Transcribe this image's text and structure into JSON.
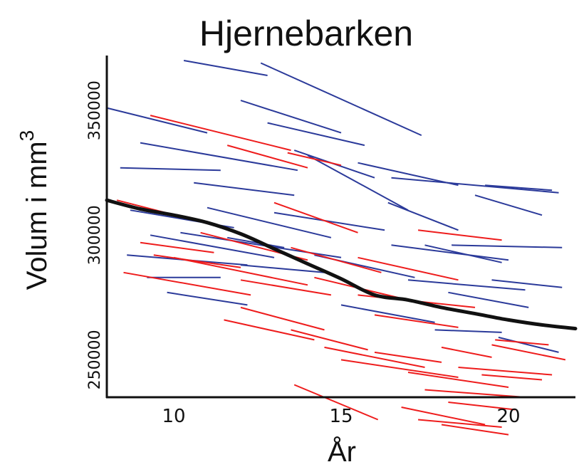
{
  "chart_data": {
    "type": "line",
    "title": "Hjernebarken",
    "xlabel": "År",
    "ylabel_main": "Volum i mm",
    "ylabel_superscript": "3",
    "xlim": [
      8,
      22
    ],
    "ylim": [
      235000,
      372000
    ],
    "x_ticks": [
      10,
      15,
      20
    ],
    "x_tick_labels": [
      "10",
      "15",
      "20"
    ],
    "y_ticks": [
      250000,
      300000,
      350000
    ],
    "y_tick_labels": [
      "250000",
      "300000",
      "350000"
    ],
    "grid": false,
    "colors": {
      "blue": "#2b3a9a",
      "red": "#ee1c1c",
      "mean": "#111111"
    },
    "mean_curve": {
      "x": [
        8,
        9,
        10,
        11,
        12,
        13,
        14,
        15,
        16,
        17,
        18,
        19,
        20,
        21,
        22
      ],
      "y": [
        314000,
        310500,
        308000,
        305000,
        300500,
        294500,
        288500,
        282500,
        276000,
        274000,
        271000,
        268500,
        266000,
        264000,
        262500
      ]
    },
    "series": [
      {
        "color": "blue",
        "segments": [
          [
            10.3,
            370000,
            12.8,
            364000
          ],
          [
            12.6,
            369000,
            17.4,
            340000
          ],
          [
            8.0,
            351000,
            11.0,
            341000
          ],
          [
            12.0,
            354000,
            15.0,
            341000
          ],
          [
            9.0,
            337000,
            13.7,
            326000
          ],
          [
            12.8,
            345000,
            15.7,
            336000
          ],
          [
            8.4,
            327000,
            11.4,
            326000
          ],
          [
            10.6,
            321000,
            13.6,
            316000
          ],
          [
            13.6,
            334000,
            16.0,
            323000
          ],
          [
            14.0,
            332000,
            17.0,
            310000
          ],
          [
            15.5,
            329000,
            18.5,
            320000
          ],
          [
            16.5,
            323000,
            21.5,
            317000
          ],
          [
            16.4,
            313000,
            18.5,
            302000
          ],
          [
            19.3,
            320000,
            21.3,
            318000
          ],
          [
            19.0,
            316000,
            21.0,
            308000
          ],
          [
            8.7,
            310000,
            11.8,
            303000
          ],
          [
            11.0,
            311000,
            14.7,
            299000
          ],
          [
            13.0,
            309000,
            16.3,
            302000
          ],
          [
            9.3,
            300000,
            13.0,
            291000
          ],
          [
            8.6,
            292000,
            12.2,
            288000
          ],
          [
            10.2,
            301000,
            15.0,
            291000
          ],
          [
            11.6,
            299000,
            13.3,
            295000
          ],
          [
            14.2,
            292000,
            17.2,
            283000
          ],
          [
            16.5,
            296000,
            20.0,
            290000
          ],
          [
            17.5,
            296000,
            19.8,
            289000
          ],
          [
            18.3,
            296000,
            21.6,
            295000
          ],
          [
            17.0,
            282000,
            20.5,
            278000
          ],
          [
            18.2,
            277000,
            20.6,
            271000
          ],
          [
            19.5,
            282000,
            21.6,
            279000
          ],
          [
            9.2,
            283000,
            11.4,
            283000
          ],
          [
            9.8,
            277000,
            12.2,
            272000
          ],
          [
            12.0,
            288000,
            14.5,
            285000
          ],
          [
            15.0,
            272000,
            17.8,
            265000
          ],
          [
            19.7,
            259000,
            21.5,
            253000
          ],
          [
            17.8,
            262000,
            19.8,
            261000
          ]
        ]
      },
      {
        "color": "red",
        "segments": [
          [
            9.3,
            348000,
            13.5,
            334000
          ],
          [
            11.6,
            336000,
            14.0,
            327000
          ],
          [
            13.4,
            333000,
            15.0,
            328000
          ],
          [
            8.3,
            314000,
            11.5,
            303000
          ],
          [
            13.0,
            313000,
            15.5,
            301000
          ],
          [
            10.8,
            301000,
            14.0,
            290000
          ],
          [
            9.0,
            297000,
            11.2,
            293000
          ],
          [
            9.4,
            292000,
            12.0,
            287000
          ],
          [
            8.5,
            285000,
            12.3,
            276000
          ],
          [
            10.0,
            291000,
            14.0,
            280000
          ],
          [
            12.0,
            282000,
            14.7,
            276000
          ],
          [
            13.5,
            295000,
            16.2,
            285000
          ],
          [
            14.2,
            283000,
            17.0,
            274000
          ],
          [
            15.5,
            291000,
            18.5,
            282000
          ],
          [
            17.3,
            302000,
            19.8,
            298000
          ],
          [
            15.5,
            276000,
            19.0,
            271000
          ],
          [
            16.0,
            268000,
            18.5,
            263000
          ],
          [
            12.0,
            271000,
            14.5,
            262000
          ],
          [
            11.5,
            266000,
            14.2,
            258000
          ],
          [
            13.5,
            262000,
            15.8,
            254000
          ],
          [
            14.5,
            255000,
            17.5,
            247000
          ],
          [
            15.0,
            250000,
            18.5,
            243000
          ],
          [
            16.0,
            253000,
            18.0,
            249000
          ],
          [
            17.0,
            245000,
            20.0,
            239000
          ],
          [
            18.0,
            255000,
            19.5,
            251000
          ],
          [
            19.5,
            256000,
            21.7,
            250000
          ],
          [
            18.5,
            247000,
            21.3,
            244000
          ],
          [
            17.5,
            238000,
            20.5,
            235000
          ],
          [
            18.2,
            233000,
            20.2,
            230000
          ],
          [
            16.8,
            231000,
            19.3,
            224000
          ],
          [
            17.3,
            226000,
            19.8,
            223000
          ],
          [
            18.0,
            224000,
            20.0,
            220000
          ],
          [
            13.6,
            240000,
            16.1,
            226000
          ],
          [
            19.2,
            244000,
            21.0,
            242000
          ],
          [
            19.6,
            258000,
            21.2,
            256000
          ]
        ]
      }
    ]
  }
}
